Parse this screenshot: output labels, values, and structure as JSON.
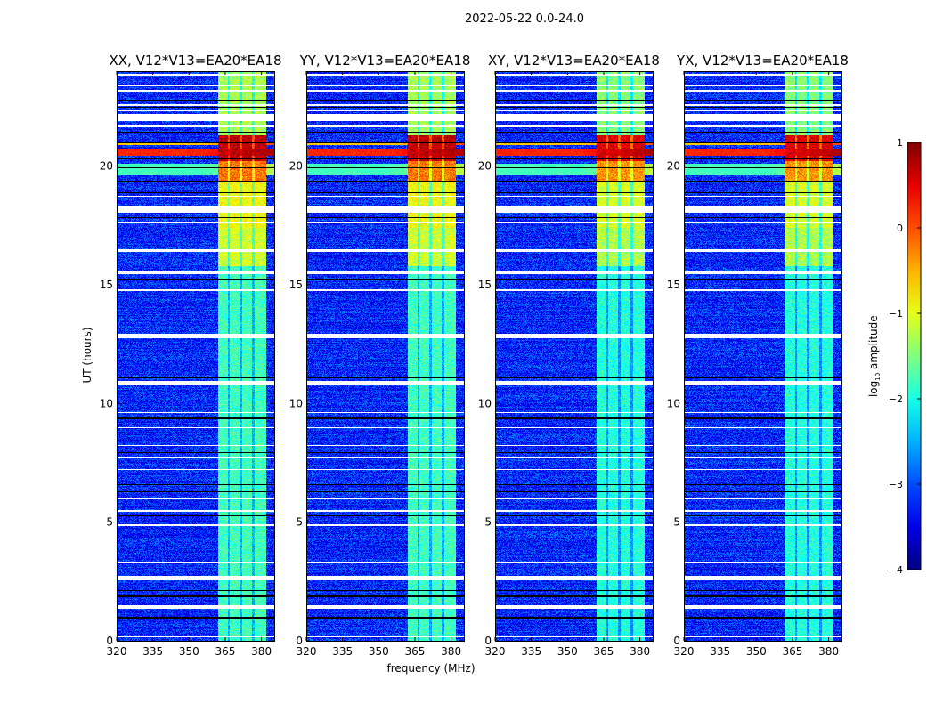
{
  "chart_data": {
    "type": "heatmap",
    "title": "2022-05-22 0.0-24.0",
    "xlabel": "frequency (MHz)",
    "ylabel": "UT (hours)",
    "xlim": [
      320,
      385.3
    ],
    "ylim": [
      0,
      24
    ],
    "xticks": [
      320,
      335,
      350,
      365,
      380
    ],
    "yticks": [
      0,
      5,
      10,
      15,
      20
    ],
    "panels": [
      {
        "title": "XX, V12*V13=EA20*EA18"
      },
      {
        "title": "YY, V12*V13=EA20*EA18"
      },
      {
        "title": "XY, V12*V13=EA20*EA18"
      },
      {
        "title": "YX, V12*V13=EA20*EA18"
      }
    ],
    "colorbar": {
      "label": "log10 amplitude",
      "label_base": "log",
      "label_sub": "10",
      "label_rest": " amplitude",
      "range": [
        -4,
        1
      ],
      "ticks": [
        "1",
        "0",
        "−1",
        "−2",
        "−3",
        "−4"
      ],
      "colormap": "jet"
    },
    "background_log_amplitude": -3.2,
    "rfi_band_mhz": [
      362,
      382
    ],
    "rfi_subband_gaps_mhz": [
      366.5,
      371.5,
      376.5
    ],
    "rfi_levels": [
      {
        "hours": [
          20.2,
          21.3
        ],
        "value": 0.7
      },
      {
        "hours": [
          19.4,
          20.2
        ],
        "value": -0.2
      },
      {
        "hours": [
          17.4,
          19.4
        ],
        "value": -0.9
      },
      {
        "hours": [
          15.8,
          17.4
        ],
        "value": -1.1
      },
      {
        "hours": [
          0,
          15.8
        ],
        "value": -1.8
      },
      {
        "hours": [
          21.3,
          24
        ],
        "value": -1.3
      }
    ],
    "broadband_events": [
      {
        "hours": [
          20.45,
          20.75
        ],
        "value": 0.2
      },
      {
        "hours": [
          20.9,
          21.05
        ],
        "value": -0.6
      },
      {
        "hours": [
          19.6,
          20.1
        ],
        "value": -1.8
      }
    ],
    "flagged_white_hours": [
      [
        23.8,
        23.9
      ],
      [
        23.35,
        23.4
      ],
      [
        23.15,
        23.2
      ],
      [
        22.55,
        22.6
      ],
      [
        22.3,
        22.35
      ],
      [
        21.9,
        22.2
      ],
      [
        21.65,
        21.7
      ],
      [
        18.7,
        18.75
      ],
      [
        18.05,
        18.3
      ],
      [
        17.6,
        17.65
      ],
      [
        16.4,
        16.5
      ],
      [
        15.45,
        15.55
      ],
      [
        14.75,
        14.8
      ],
      [
        12.75,
        12.95
      ],
      [
        10.75,
        10.95
      ],
      [
        9.6,
        9.65
      ],
      [
        8.95,
        9.0
      ],
      [
        8.2,
        8.25
      ],
      [
        7.7,
        7.75
      ],
      [
        7.2,
        7.25
      ],
      [
        5.95,
        6.0
      ],
      [
        5.45,
        5.5
      ],
      [
        4.85,
        4.9
      ],
      [
        3.25,
        3.3
      ],
      [
        2.95,
        3.0
      ],
      [
        2.55,
        2.75
      ],
      [
        1.35,
        1.5
      ],
      [
        0.15,
        0.2
      ]
    ],
    "flagged_black_hours": [
      [
        22.75,
        22.8
      ],
      [
        22.45,
        22.5
      ],
      [
        21.4,
        21.45
      ],
      [
        20.95,
        21.0
      ],
      [
        20.3,
        20.35
      ],
      [
        19.9,
        19.95
      ],
      [
        19.35,
        19.4
      ],
      [
        18.85,
        18.9
      ],
      [
        17.8,
        17.85
      ],
      [
        15.2,
        15.25
      ],
      [
        11.05,
        11.1
      ],
      [
        9.35,
        9.4
      ],
      [
        7.9,
        7.95
      ],
      [
        6.55,
        6.6
      ],
      [
        6.25,
        6.3
      ],
      [
        5.25,
        5.3
      ],
      [
        2.1,
        2.15
      ],
      [
        1.85,
        1.95
      ],
      [
        0.95,
        1.0
      ]
    ]
  }
}
